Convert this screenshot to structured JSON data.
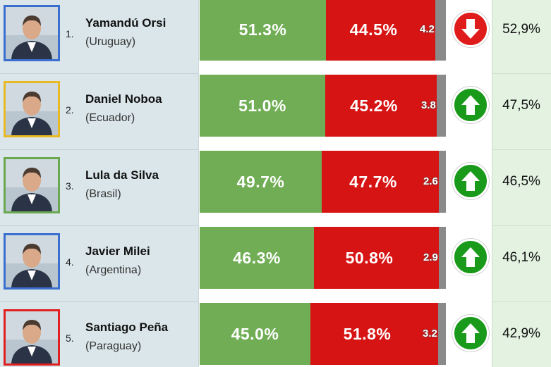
{
  "chart_data": {
    "type": "bar",
    "stacked": true,
    "orientation": "horizontal",
    "columns": [
      "approve",
      "disapprove",
      "no_answer",
      "trend",
      "approval"
    ],
    "colors": {
      "approve": "#70ad55",
      "disapprove": "#d71414",
      "no_answer": "#8a8a8a",
      "trend_up": "#1a9a1a",
      "trend_down": "#e01b1b"
    },
    "rows": [
      {
        "rank": "1.",
        "name": "Yamandú Orsi",
        "country": "(Uruguay)",
        "approve": 51.3,
        "approve_label": "51.3%",
        "disapprove": 44.5,
        "disapprove_label": "44.5%",
        "no_answer": 4.2,
        "no_answer_label": "4.2",
        "trend": "down",
        "trend_icon": "arrow-down-icon",
        "approval_label": "52,9%",
        "frame_color": "#3a6fd0"
      },
      {
        "rank": "2.",
        "name": "Daniel Noboa",
        "country": "(Ecuador)",
        "approve": 51.0,
        "approve_label": "51.0%",
        "disapprove": 45.2,
        "disapprove_label": "45.2%",
        "no_answer": 3.8,
        "no_answer_label": "3.8",
        "trend": "up",
        "trend_icon": "arrow-up-icon",
        "approval_label": "47,5%",
        "frame_color": "#e8b923"
      },
      {
        "rank": "3.",
        "name": "Lula da Silva",
        "country": "(Brasil)",
        "approve": 49.7,
        "approve_label": "49.7%",
        "disapprove": 47.7,
        "disapprove_label": "47.7%",
        "no_answer": 2.6,
        "no_answer_label": "2.6",
        "trend": "up",
        "trend_icon": "arrow-up-icon",
        "approval_label": "46,5%",
        "frame_color": "#6aa84f"
      },
      {
        "rank": "4.",
        "name": "Javier Milei",
        "country": "(Argentina)",
        "approve": 46.3,
        "approve_label": "46.3%",
        "disapprove": 50.8,
        "disapprove_label": "50.8%",
        "no_answer": 2.9,
        "no_answer_label": "2.9",
        "trend": "up",
        "trend_icon": "arrow-up-icon",
        "approval_label": "46,1%",
        "frame_color": "#3a6fd0"
      },
      {
        "rank": "5.",
        "name": "Santiago Peña",
        "country": "(Paraguay)",
        "approve": 45.0,
        "approve_label": "45.0%",
        "disapprove": 51.8,
        "disapprove_label": "51.8%",
        "no_answer": 3.2,
        "no_answer_label": "3.2",
        "trend": "up",
        "trend_icon": "arrow-up-icon",
        "approval_label": "42,9%",
        "frame_color": "#e02020"
      }
    ]
  }
}
